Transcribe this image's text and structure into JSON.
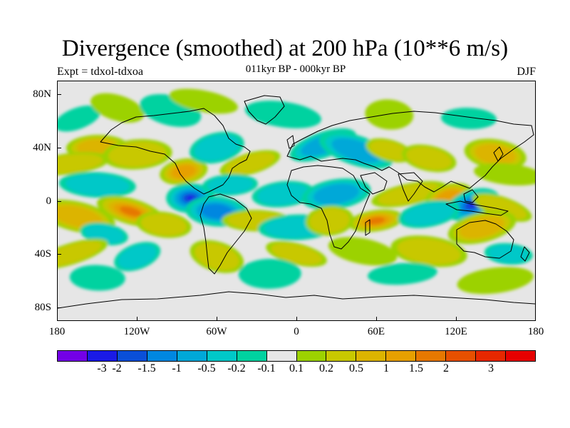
{
  "title": "Divergence (smoothed) at 200 hPa (10**6 m/s)",
  "experiment": "Expt = tdxol-tdxoa",
  "period": "011kyr BP - 000kyr BP",
  "season": "DJF",
  "lat_labels": [
    {
      "lat": 80,
      "label": "80N"
    },
    {
      "lat": 40,
      "label": "40N"
    },
    {
      "lat": 0,
      "label": "0"
    },
    {
      "lat": -40,
      "label": "40S"
    },
    {
      "lat": -80,
      "label": "80S"
    }
  ],
  "lon_labels": [
    {
      "lon": -180,
      "label": "180"
    },
    {
      "lon": -120,
      "label": "120W"
    },
    {
      "lon": -60,
      "label": "60W"
    },
    {
      "lon": 0,
      "label": "0"
    },
    {
      "lon": 60,
      "label": "60E"
    },
    {
      "lon": 120,
      "label": "120E"
    },
    {
      "lon": 180,
      "label": "180"
    }
  ],
  "colorbar": {
    "colors": [
      "#7300e6",
      "#1a1ae6",
      "#0a4fd8",
      "#0087e0",
      "#00a8d8",
      "#00c8c8",
      "#00d2a0",
      "#e6e6e6",
      "#9cd200",
      "#c8c800",
      "#dcb400",
      "#e6a000",
      "#e67800",
      "#e65000",
      "#e62800",
      "#e60000"
    ],
    "labels": [
      "-3",
      "-2",
      "-1.5",
      "-1",
      "-0.5",
      "-0.2",
      "-0.1",
      "0.1",
      "0.2",
      "0.5",
      "1",
      "1.5",
      "2",
      "3"
    ]
  },
  "map_anomalies": [
    {
      "lon": -165,
      "lat": 62,
      "value": -0.3
    },
    {
      "lon": -135,
      "lat": 70,
      "value": 0.25
    },
    {
      "lon": -95,
      "lat": 68,
      "value": -0.3
    },
    {
      "lon": -70,
      "lat": 75,
      "value": 0.3
    },
    {
      "lon": -10,
      "lat": 65,
      "value": -0.2
    },
    {
      "lon": 70,
      "lat": 65,
      "value": 0.2
    },
    {
      "lon": 130,
      "lat": 62,
      "value": -0.3
    },
    {
      "lon": -150,
      "lat": 40,
      "value": 0.8
    },
    {
      "lon": -120,
      "lat": 35,
      "value": 0.6
    },
    {
      "lon": -170,
      "lat": 28,
      "value": 0.4
    },
    {
      "lon": -85,
      "lat": 22,
      "value": 1.4
    },
    {
      "lon": -60,
      "lat": 40,
      "value": -0.6
    },
    {
      "lon": -35,
      "lat": 28,
      "value": 0.6
    },
    {
      "lon": 20,
      "lat": 42,
      "value": -0.8
    },
    {
      "lon": 45,
      "lat": 38,
      "value": -1.1
    },
    {
      "lon": 70,
      "lat": 38,
      "value": 0.7
    },
    {
      "lon": 100,
      "lat": 32,
      "value": 0.6
    },
    {
      "lon": 150,
      "lat": 35,
      "value": 0.8
    },
    {
      "lon": 160,
      "lat": 20,
      "value": 0.3
    },
    {
      "lon": -150,
      "lat": 12,
      "value": -0.4
    },
    {
      "lon": -80,
      "lat": 2,
      "value": -2.5
    },
    {
      "lon": -50,
      "lat": 12,
      "value": -0.6
    },
    {
      "lon": -10,
      "lat": 5,
      "value": -0.6
    },
    {
      "lon": 30,
      "lat": 5,
      "value": -0.8
    },
    {
      "lon": 85,
      "lat": 5,
      "value": 0.6
    },
    {
      "lon": 115,
      "lat": 3,
      "value": 1.5
    },
    {
      "lon": 133,
      "lat": -3,
      "value": -2.5
    },
    {
      "lon": 155,
      "lat": -5,
      "value": 0.5
    },
    {
      "lon": -125,
      "lat": -8,
      "value": 2.2
    },
    {
      "lon": -165,
      "lat": -12,
      "value": 1.2
    },
    {
      "lon": -145,
      "lat": -25,
      "value": -0.5
    },
    {
      "lon": -100,
      "lat": -18,
      "value": 0.5
    },
    {
      "lon": -60,
      "lat": -8,
      "value": -1.4
    },
    {
      "lon": -30,
      "lat": -15,
      "value": 0.5
    },
    {
      "lon": 0,
      "lat": -20,
      "value": -0.6
    },
    {
      "lon": 25,
      "lat": -15,
      "value": 0.4
    },
    {
      "lon": 60,
      "lat": -15,
      "value": 2.2
    },
    {
      "lon": 100,
      "lat": -10,
      "value": -0.5
    },
    {
      "lon": 140,
      "lat": -20,
      "value": 1.1
    },
    {
      "lon": -170,
      "lat": -40,
      "value": 0.5
    },
    {
      "lon": -120,
      "lat": -42,
      "value": -0.6
    },
    {
      "lon": -60,
      "lat": -42,
      "value": 0.6
    },
    {
      "lon": 0,
      "lat": -40,
      "value": 0.5
    },
    {
      "lon": 50,
      "lat": -38,
      "value": 0.3
    },
    {
      "lon": 100,
      "lat": -38,
      "value": 0.6
    },
    {
      "lon": 160,
      "lat": -40,
      "value": -0.4
    },
    {
      "lon": -150,
      "lat": -58,
      "value": -0.3
    },
    {
      "lon": -20,
      "lat": -55,
      "value": -0.3
    },
    {
      "lon": 80,
      "lat": -55,
      "value": -0.3
    },
    {
      "lon": 150,
      "lat": -60,
      "value": 0.2
    }
  ]
}
